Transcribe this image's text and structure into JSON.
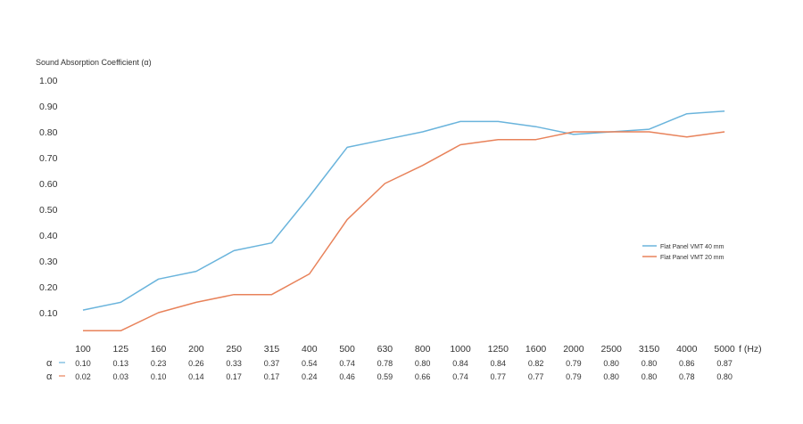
{
  "chart_data": {
    "type": "line",
    "ylabel": "Sound Absorption Coefficient (α)",
    "xlabel": "f (Hz)",
    "ylim": [
      0,
      1.0
    ],
    "y_ticks": [
      "0.10",
      "0.20",
      "0.30",
      "0.40",
      "0.50",
      "0.60",
      "0.70",
      "0.80",
      "0.90",
      "1.00"
    ],
    "categories": [
      "100",
      "125",
      "160",
      "200",
      "250",
      "315",
      "400",
      "500",
      "630",
      "800",
      "1000",
      "1250",
      "1600",
      "2000",
      "2500",
      "3150",
      "4000",
      "5000"
    ],
    "series": [
      {
        "name": "Flat Panel VMT 40 mm",
        "color": "#6ab4dc",
        "row_symbol": "α",
        "values": [
          0.1,
          0.13,
          0.23,
          0.26,
          0.33,
          0.37,
          0.54,
          0.74,
          0.78,
          0.8,
          0.84,
          0.84,
          0.82,
          0.79,
          0.8,
          0.8,
          0.86,
          0.87
        ]
      },
      {
        "name": "Flat Panel VMT 20 mm",
        "color": "#e8825a",
        "row_symbol": "α",
        "values": [
          0.02,
          0.03,
          0.1,
          0.14,
          0.17,
          0.17,
          0.24,
          0.46,
          0.59,
          0.66,
          0.74,
          0.77,
          0.77,
          0.79,
          0.8,
          0.8,
          0.78,
          0.8
        ]
      }
    ],
    "plotted_values": [
      [
        0.11,
        0.14,
        0.23,
        0.26,
        0.34,
        0.37,
        0.55,
        0.74,
        0.77,
        0.8,
        0.84,
        0.84,
        0.82,
        0.79,
        0.8,
        0.81,
        0.87,
        0.88
      ],
      [
        0.03,
        0.03,
        0.1,
        0.14,
        0.17,
        0.17,
        0.25,
        0.46,
        0.6,
        0.67,
        0.75,
        0.77,
        0.77,
        0.8,
        0.8,
        0.8,
        0.78,
        0.8
      ]
    ],
    "legend_position": "right",
    "grid": false
  }
}
